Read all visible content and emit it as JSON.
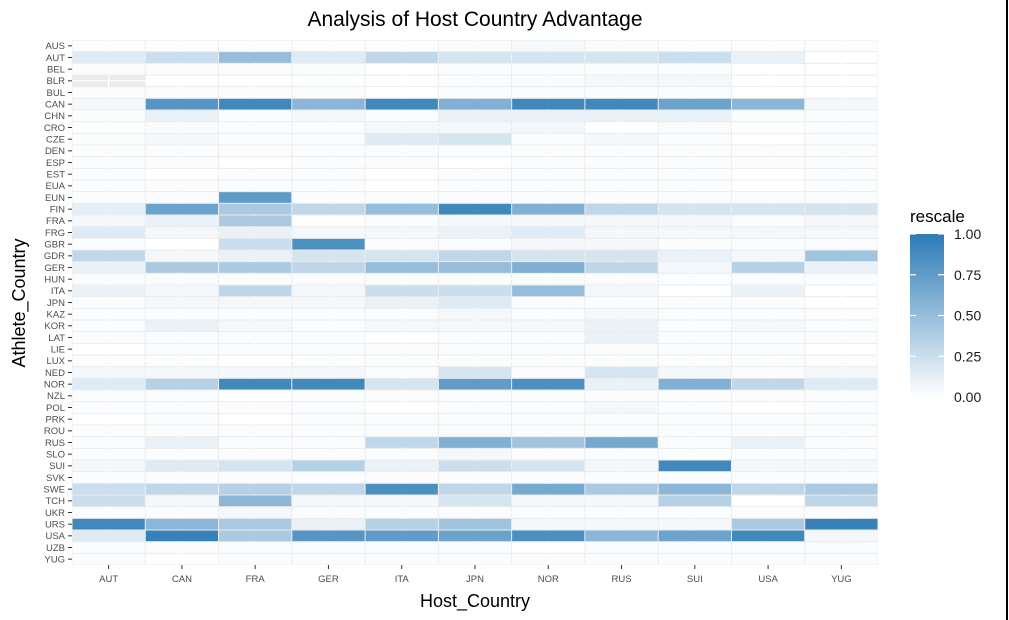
{
  "chart_data": {
    "type": "heatmap",
    "title": "Analysis of Host Country Advantage",
    "xlabel": "Host_Country",
    "ylabel": "Athlete_Country",
    "x_categories": [
      "AUT",
      "CAN",
      "FRA",
      "GER",
      "ITA",
      "JPN",
      "NOR",
      "RUS",
      "SUI",
      "USA",
      "YUG"
    ],
    "y_categories": [
      "AUS",
      "AUT",
      "BEL",
      "BLR",
      "BUL",
      "CAN",
      "CHN",
      "CRO",
      "CZE",
      "DEN",
      "ESP",
      "EST",
      "EUA",
      "EUN",
      "FIN",
      "FRA",
      "FRG",
      "GBR",
      "GDR",
      "GER",
      "HUN",
      "ITA",
      "JPN",
      "KAZ",
      "KOR",
      "LAT",
      "LIE",
      "LUX",
      "NED",
      "NOR",
      "NZL",
      "POL",
      "PRK",
      "ROU",
      "RUS",
      "SLO",
      "SUI",
      "SVK",
      "SWE",
      "TCH",
      "UKR",
      "URS",
      "USA",
      "UZB",
      "YUG"
    ],
    "values": [
      [
        0.02,
        0.02,
        0.02,
        0.02,
        0.02,
        0.03,
        0.04,
        0.03,
        0.02,
        0.02,
        0.02
      ],
      [
        0.15,
        0.25,
        0.5,
        0.15,
        0.3,
        0.2,
        0.2,
        0.2,
        0.25,
        0.1,
        0.0
      ],
      [
        0.02,
        0.02,
        0.02,
        0.02,
        0.01,
        0.02,
        0.02,
        0.02,
        0.02,
        0.01,
        0.01
      ],
      [
        null,
        0.0,
        0.0,
        0.01,
        0.0,
        0.03,
        0.03,
        0.05,
        0.05,
        0.0,
        0.0
      ],
      [
        0.02,
        0.02,
        0.02,
        0.02,
        0.0,
        0.02,
        0.03,
        0.02,
        0.02,
        0.0,
        0.0
      ],
      [
        0.05,
        0.8,
        0.9,
        0.55,
        0.9,
        0.6,
        0.9,
        0.9,
        0.7,
        0.55,
        0.05
      ],
      [
        0.02,
        0.1,
        0.02,
        0.05,
        0.02,
        0.1,
        0.1,
        0.1,
        0.1,
        0.02,
        0.02
      ],
      [
        0.01,
        0.03,
        0.02,
        0.02,
        0.05,
        0.05,
        0.05,
        0.0,
        0.03,
        0.01,
        0.02
      ],
      [
        0.02,
        0.05,
        0.02,
        0.03,
        0.15,
        0.2,
        0.02,
        0.05,
        0.02,
        0.0,
        0.02
      ],
      [
        0.02,
        0.02,
        0.02,
        0.02,
        0.02,
        0.02,
        0.02,
        0.02,
        0.02,
        0.02,
        0.02
      ],
      [
        0.02,
        0.02,
        0.0,
        0.02,
        0.02,
        0.0,
        0.02,
        0.02,
        0.02,
        0.02,
        0.02
      ],
      [
        0.02,
        0.0,
        0.02,
        0.02,
        0.0,
        0.02,
        0.02,
        0.02,
        0.02,
        0.0,
        0.02
      ],
      [
        0.02,
        0.02,
        0.02,
        0.02,
        0.0,
        0.02,
        0.02,
        0.02,
        0.02,
        0.0,
        0.02
      ],
      [
        0.02,
        0.02,
        0.75,
        0.02,
        0.02,
        0.02,
        0.02,
        0.02,
        0.02,
        0.02,
        0.02
      ],
      [
        0.12,
        0.7,
        0.4,
        0.3,
        0.5,
        0.9,
        0.6,
        0.3,
        0.2,
        0.2,
        0.2
      ],
      [
        0.05,
        0.1,
        0.4,
        0.0,
        0.02,
        0.05,
        0.05,
        0.05,
        0.05,
        0.02,
        0.05
      ],
      [
        0.15,
        0.05,
        0.1,
        0.05,
        0.05,
        0.1,
        0.15,
        0.05,
        0.05,
        0.05,
        0.05
      ],
      [
        0.02,
        0.0,
        0.25,
        0.85,
        0.02,
        0.02,
        0.05,
        0.05,
        0.02,
        0.02,
        0.02
      ],
      [
        0.3,
        0.05,
        0.1,
        0.2,
        0.2,
        0.3,
        0.2,
        0.2,
        0.1,
        0.05,
        0.45
      ],
      [
        0.1,
        0.4,
        0.4,
        0.3,
        0.5,
        0.5,
        0.6,
        0.3,
        0.05,
        0.35,
        0.1
      ],
      [
        0.02,
        0.02,
        0.02,
        0.02,
        0.02,
        0.02,
        0.02,
        0.02,
        0.02,
        0.02,
        0.02
      ],
      [
        0.1,
        0.05,
        0.3,
        0.05,
        0.25,
        0.25,
        0.5,
        0.05,
        0.0,
        0.1,
        0.0
      ],
      [
        0.02,
        0.05,
        0.05,
        0.05,
        0.1,
        0.15,
        0.02,
        0.02,
        0.02,
        0.02,
        0.0
      ],
      [
        0.02,
        0.02,
        0.02,
        0.02,
        0.02,
        0.05,
        0.02,
        0.05,
        0.02,
        0.02,
        0.02
      ],
      [
        0.02,
        0.1,
        0.05,
        0.02,
        0.05,
        0.05,
        0.05,
        0.1,
        0.02,
        0.05,
        0.02
      ],
      [
        0.02,
        0.02,
        0.02,
        0.02,
        0.0,
        0.02,
        0.02,
        0.1,
        0.02,
        0.02,
        0.02
      ],
      [
        0.0,
        0.02,
        0.02,
        0.02,
        0.02,
        0.02,
        0.02,
        0.02,
        0.02,
        0.02,
        0.0
      ],
      [
        0.02,
        0.02,
        0.0,
        0.02,
        0.02,
        0.02,
        0.02,
        0.02,
        0.02,
        0.02,
        0.02
      ],
      [
        0.05,
        0.05,
        0.05,
        0.05,
        0.02,
        0.2,
        0.02,
        0.2,
        0.05,
        0.02,
        0.05
      ],
      [
        0.15,
        0.35,
        0.9,
        0.9,
        0.2,
        0.75,
        0.85,
        0.1,
        0.6,
        0.3,
        0.15
      ],
      [
        0.02,
        0.02,
        0.0,
        0.02,
        0.02,
        0.02,
        0.02,
        0.02,
        0.02,
        0.02,
        0.02
      ],
      [
        0.02,
        0.02,
        0.02,
        0.02,
        0.0,
        0.02,
        0.02,
        0.05,
        0.02,
        0.0,
        0.02
      ],
      [
        0.0,
        0.02,
        0.0,
        0.02,
        0.02,
        0.02,
        0.02,
        0.02,
        0.02,
        0.02,
        0.02
      ],
      [
        0.02,
        0.02,
        0.02,
        0.02,
        0.02,
        0.02,
        0.02,
        0.02,
        0.02,
        0.02,
        0.02
      ],
      [
        0.02,
        0.1,
        0.02,
        0.02,
        0.3,
        0.6,
        0.45,
        0.65,
        0.02,
        0.1,
        0.02
      ],
      [
        0.02,
        0.02,
        0.02,
        0.02,
        0.02,
        0.05,
        0.02,
        0.02,
        0.02,
        0.02,
        0.02
      ],
      [
        0.05,
        0.15,
        0.2,
        0.35,
        0.1,
        0.25,
        0.2,
        0.05,
        0.9,
        0.05,
        0.05
      ],
      [
        0.02,
        0.02,
        0.02,
        0.02,
        0.02,
        0.02,
        0.02,
        0.02,
        0.02,
        0.02,
        0.02
      ],
      [
        0.25,
        0.3,
        0.35,
        0.3,
        0.85,
        0.3,
        0.65,
        0.4,
        0.55,
        0.3,
        0.4
      ],
      [
        0.25,
        0.05,
        0.55,
        0.05,
        0.05,
        0.2,
        0.05,
        0.05,
        0.35,
        0.0,
        0.3
      ],
      [
        0.02,
        0.02,
        0.05,
        0.02,
        0.02,
        0.02,
        0.02,
        0.02,
        0.02,
        0.02,
        0.02
      ],
      [
        0.9,
        0.55,
        0.4,
        0.1,
        0.35,
        0.45,
        0.05,
        0.05,
        0.05,
        0.4,
        0.95
      ],
      [
        0.15,
        0.95,
        0.4,
        0.8,
        0.75,
        0.7,
        0.85,
        0.55,
        0.7,
        0.9,
        0.05
      ],
      [
        0.02,
        0.02,
        0.02,
        0.02,
        0.02,
        0.02,
        0.0,
        0.02,
        0.02,
        0.02,
        0.02
      ],
      [
        0.02,
        0.0,
        0.02,
        0.02,
        0.02,
        0.02,
        0.02,
        0.02,
        0.02,
        0.02,
        0.02
      ]
    ],
    "legend": {
      "title": "rescale",
      "breaks": [
        1.0,
        0.75,
        0.5,
        0.25,
        0.0
      ],
      "labels": [
        "1.00",
        "0.75",
        "0.50",
        "0.25",
        "0.00"
      ],
      "position": "right"
    },
    "colors": {
      "low": "#ffffff",
      "high": "#2c7bb6",
      "panel_background": "#ebebeb",
      "grid": "#ffffff",
      "tile_border": "#ebebeb"
    },
    "grid": true
  }
}
